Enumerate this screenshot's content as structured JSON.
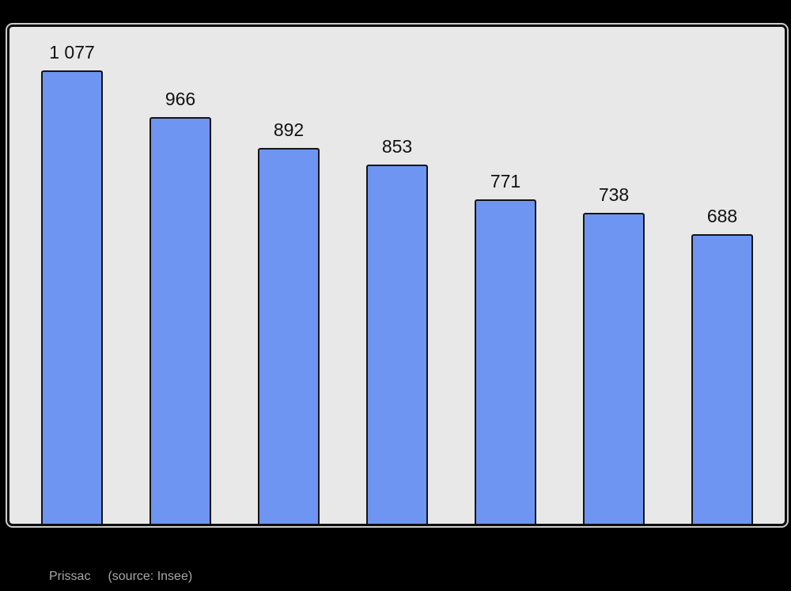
{
  "page": {
    "background_color": "#000000"
  },
  "chart_data": {
    "type": "bar",
    "values": [
      1077,
      966,
      892,
      853,
      771,
      738,
      688
    ],
    "value_labels": [
      "1 077",
      "966",
      "892",
      "853",
      "771",
      "738",
      "688"
    ],
    "ylim": [
      0,
      1180
    ],
    "grid": false,
    "legend": false,
    "plot_background_color": "#e8e8e8",
    "bar_fill_color": "#6e95f2",
    "bar_border_color": "#141414",
    "value_label_color": "#111111"
  },
  "caption": {
    "commune": "Prissac",
    "source": "(source: Insee)",
    "text_color": "#a8a8a8"
  }
}
